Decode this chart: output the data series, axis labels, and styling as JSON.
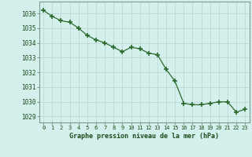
{
  "x": [
    0,
    1,
    2,
    3,
    4,
    5,
    6,
    7,
    8,
    9,
    10,
    11,
    12,
    13,
    14,
    15,
    16,
    17,
    18,
    19,
    20,
    21,
    22,
    23
  ],
  "y": [
    1036.2,
    1035.8,
    1035.5,
    1035.4,
    1035.0,
    1034.5,
    1034.2,
    1034.0,
    1033.7,
    1033.4,
    1033.7,
    1033.6,
    1033.3,
    1033.2,
    1032.2,
    1031.4,
    1029.9,
    1029.8,
    1029.8,
    1029.9,
    1030.0,
    1030.0,
    1029.3,
    1029.5
  ],
  "line_color": "#2d6a2d",
  "marker_color": "#2d6a2d",
  "bg_color": "#d4f0ec",
  "grid_color": "#b8d4d0",
  "xlabel": "Graphe pression niveau de la mer (hPa)",
  "xlabel_color": "#1a4a1a",
  "yticks": [
    1029,
    1030,
    1031,
    1032,
    1033,
    1034,
    1035,
    1036
  ],
  "ylim": [
    1028.6,
    1036.8
  ],
  "xlim": [
    -0.5,
    23.5
  ],
  "xtick_labels": [
    "0",
    "1",
    "2",
    "3",
    "4",
    "5",
    "6",
    "7",
    "8",
    "9",
    "10",
    "11",
    "12",
    "13",
    "14",
    "15",
    "16",
    "17",
    "18",
    "19",
    "20",
    "21",
    "22",
    "23"
  ]
}
